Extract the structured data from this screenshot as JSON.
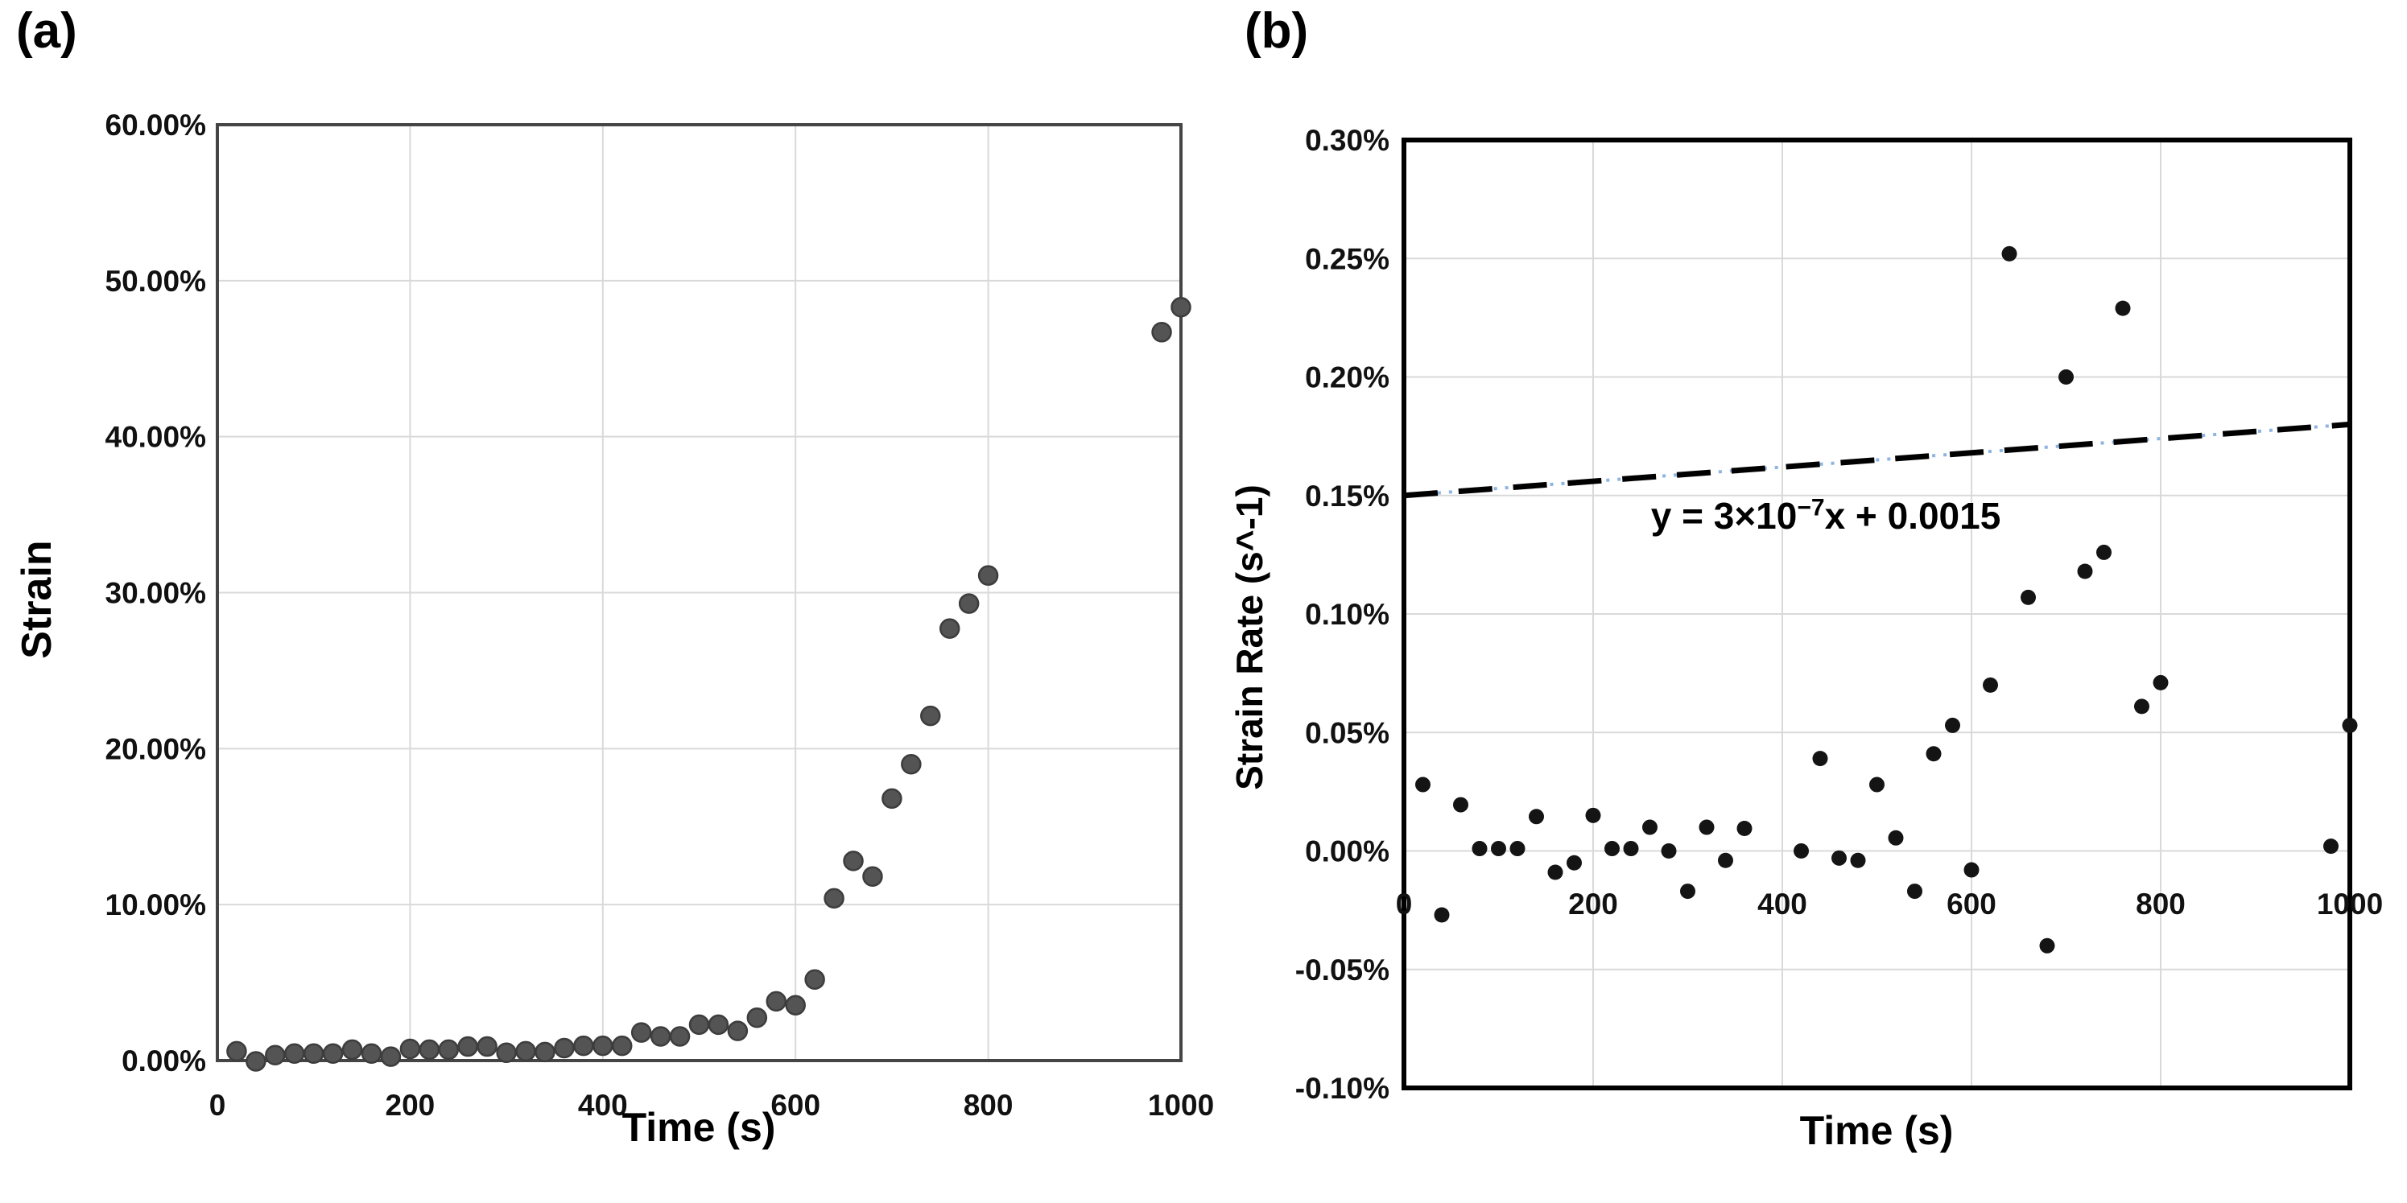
{
  "figure": {
    "panel_a": {
      "label": "(a)",
      "x_axis_title": "Time (s)",
      "y_axis_title": "Strain",
      "x_tick_labels": [
        "0",
        "200",
        "400",
        "600",
        "800",
        "1000"
      ],
      "y_tick_labels": [
        "60.00%",
        "50.00%",
        "40.00%",
        "30.00%",
        "20.00%",
        "10.00%",
        "0.00%"
      ]
    },
    "panel_b": {
      "label": "(b)",
      "x_axis_title": "Time (s)",
      "y_axis_title": "Strain Rate (s^-1)",
      "x_tick_labels": [
        "0",
        "200",
        "400",
        "600",
        "800",
        "1000"
      ],
      "y_tick_labels": [
        "0.30%",
        "0.25%",
        "0.20%",
        "0.15%",
        "0.10%",
        "0.05%",
        "0.00%",
        "-0.05%",
        "-0.10%"
      ],
      "trend_equation": {
        "prefix": "y = 3×10",
        "exponent": "−7",
        "suffix": "x + 0.0015"
      }
    }
  },
  "colors": {
    "marker_a_fill": "#545454",
    "marker_a_stroke": "#3d3d3d",
    "marker_b_fill": "#141414",
    "gridline": "#d9d9d9",
    "border_a": "#454545",
    "border_b": "#000000",
    "trend_dash": "#000000",
    "trend_dot": "#8db4e2",
    "tick_text": "#111111"
  },
  "chart_data": [
    {
      "id": "a",
      "type": "scatter",
      "title": "",
      "xlabel": "Time (s)",
      "ylabel": "Strain",
      "xlim": [
        0,
        1000
      ],
      "ylim": [
        0,
        60
      ],
      "y_unit": "percent",
      "grid": true,
      "legend": "none",
      "x_ticks": [
        0,
        200,
        400,
        600,
        800,
        1000
      ],
      "y_ticks": [
        60,
        50,
        40,
        30,
        20,
        10,
        0
      ],
      "points_time_s_vs_strain_pct": [
        [
          20,
          0.6
        ],
        [
          40,
          -0.05
        ],
        [
          60,
          0.35
        ],
        [
          80,
          0.45
        ],
        [
          100,
          0.45
        ],
        [
          120,
          0.45
        ],
        [
          140,
          0.7
        ],
        [
          160,
          0.45
        ],
        [
          180,
          0.25
        ],
        [
          200,
          0.75
        ],
        [
          220,
          0.7
        ],
        [
          240,
          0.7
        ],
        [
          260,
          0.9
        ],
        [
          280,
          0.9
        ],
        [
          300,
          0.5
        ],
        [
          320,
          0.6
        ],
        [
          340,
          0.55
        ],
        [
          360,
          0.8
        ],
        [
          380,
          0.95
        ],
        [
          400,
          0.95
        ],
        [
          420,
          0.95
        ],
        [
          440,
          1.8
        ],
        [
          460,
          1.55
        ],
        [
          480,
          1.55
        ],
        [
          500,
          2.3
        ],
        [
          520,
          2.3
        ],
        [
          540,
          1.9
        ],
        [
          560,
          2.75
        ],
        [
          580,
          3.8
        ],
        [
          600,
          3.55
        ],
        [
          620,
          5.2
        ],
        [
          640,
          10.4
        ],
        [
          660,
          12.8
        ],
        [
          680,
          11.8
        ],
        [
          700,
          16.8
        ],
        [
          720,
          19.0
        ],
        [
          740,
          22.1
        ],
        [
          760,
          27.7
        ],
        [
          780,
          29.3
        ],
        [
          800,
          31.1
        ],
        [
          980,
          46.7
        ],
        [
          1000,
          48.3
        ]
      ]
    },
    {
      "id": "b",
      "type": "scatter",
      "title": "",
      "xlabel": "Time (s)",
      "ylabel": "Strain Rate (s^-1)",
      "xlim": [
        0,
        1000
      ],
      "ylim": [
        -0.1,
        0.3
      ],
      "y_unit": "percent",
      "grid": true,
      "legend": "none",
      "x_ticks": [
        0,
        200,
        400,
        600,
        800,
        1000
      ],
      "y_ticks": [
        0.3,
        0.25,
        0.2,
        0.15,
        0.1,
        0.05,
        0.0,
        -0.05,
        -0.1
      ],
      "points_time_s_vs_strainrate_pct": [
        [
          20,
          0.028
        ],
        [
          40,
          -0.027
        ],
        [
          60,
          0.0195
        ],
        [
          80,
          0.001
        ],
        [
          100,
          0.001
        ],
        [
          120,
          0.001
        ],
        [
          140,
          0.0145
        ],
        [
          160,
          -0.009
        ],
        [
          180,
          -0.005
        ],
        [
          200,
          0.015
        ],
        [
          220,
          0.001
        ],
        [
          240,
          0.001
        ],
        [
          260,
          0.01
        ],
        [
          280,
          0.0
        ],
        [
          300,
          -0.017
        ],
        [
          320,
          0.01
        ],
        [
          340,
          -0.004
        ],
        [
          360,
          0.0095
        ],
        [
          420,
          0.0
        ],
        [
          440,
          0.039
        ],
        [
          460,
          -0.003
        ],
        [
          480,
          -0.004
        ],
        [
          500,
          0.028
        ],
        [
          520,
          0.0055
        ],
        [
          540,
          -0.017
        ],
        [
          560,
          0.041
        ],
        [
          580,
          0.053
        ],
        [
          600,
          -0.008
        ],
        [
          620,
          0.07
        ],
        [
          640,
          0.252
        ],
        [
          660,
          0.107
        ],
        [
          680,
          -0.04
        ],
        [
          700,
          0.2
        ],
        [
          720,
          0.118
        ],
        [
          740,
          0.126
        ],
        [
          760,
          0.229
        ],
        [
          780,
          0.061
        ],
        [
          800,
          0.071
        ],
        [
          980,
          0.002
        ],
        [
          1000,
          0.053
        ]
      ],
      "trendline": {
        "style": "dashed-black-with-blue-dotted-overlay",
        "x_range": [
          0,
          1000
        ],
        "y_pct_at_x_start": 0.15,
        "y_pct_at_x_end": 0.18,
        "equation_text": "y = 3×10⁻⁷x + 0.0015"
      }
    }
  ]
}
